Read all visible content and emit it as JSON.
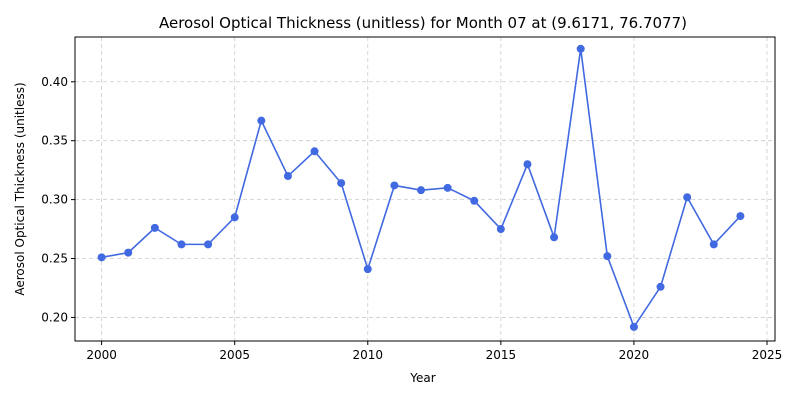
{
  "chart_data": {
    "type": "line",
    "title": "Aerosol Optical Thickness (unitless) for Month 07 at (9.6171, 76.7077)",
    "xlabel": "Year",
    "ylabel": "Aerosol Optical Thickness (unitless)",
    "xlim": [
      1999.0,
      2025.3
    ],
    "ylim": [
      0.18,
      0.438
    ],
    "xticks": [
      2000,
      2005,
      2010,
      2015,
      2020,
      2025
    ],
    "yticks": [
      0.2,
      0.25,
      0.3,
      0.35,
      0.4
    ],
    "ytick_labels": [
      "0.20",
      "0.25",
      "0.30",
      "0.35",
      "0.40"
    ],
    "grid": true,
    "color": "#4169e1",
    "series": [
      {
        "x": [
          2000,
          2001,
          2002,
          2003,
          2004,
          2005,
          2006,
          2007,
          2008,
          2009,
          2010,
          2011,
          2012,
          2013,
          2014,
          2015,
          2016,
          2017,
          2018,
          2019,
          2020,
          2021,
          2022,
          2023,
          2024
        ],
        "values": [
          0.251,
          0.255,
          0.276,
          0.262,
          0.262,
          0.285,
          0.367,
          0.32,
          0.341,
          0.314,
          0.241,
          0.312,
          0.308,
          0.31,
          0.299,
          0.275,
          0.33,
          0.268,
          0.428,
          0.252,
          0.192,
          0.226,
          0.302,
          0.262,
          0.286
        ]
      }
    ]
  }
}
